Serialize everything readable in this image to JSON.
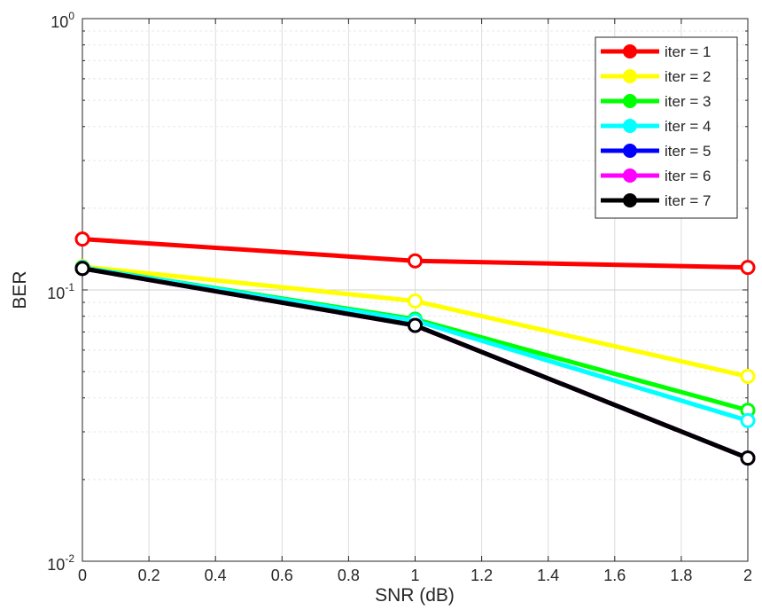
{
  "chart_data": {
    "type": "line",
    "title": "",
    "xlabel": "SNR (dB)",
    "ylabel": "BER",
    "xlim": [
      0,
      2
    ],
    "ylim": [
      0.01,
      1
    ],
    "yscale": "log",
    "grid": true,
    "legend_position": "top-right",
    "x_ticks": [
      "0",
      "0.2",
      "0.4",
      "0.6",
      "0.8",
      "1",
      "1.2",
      "1.4",
      "1.6",
      "1.8",
      "2"
    ],
    "y_ticks": [
      {
        "value": 0.01,
        "base": "10",
        "exp": "-2"
      },
      {
        "value": 0.1,
        "base": "10",
        "exp": "-1"
      },
      {
        "value": 1,
        "base": "10",
        "exp": "0"
      }
    ],
    "x": [
      0,
      1,
      2
    ],
    "series": [
      {
        "name": "iter = 1",
        "color": "#ff0000",
        "values": [
          0.154,
          0.128,
          0.121
        ]
      },
      {
        "name": "iter = 2",
        "color": "#ffff00",
        "values": [
          0.122,
          0.091,
          0.048
        ]
      },
      {
        "name": "iter = 3",
        "color": "#00ff00",
        "values": [
          0.121,
          0.078,
          0.036
        ]
      },
      {
        "name": "iter = 4",
        "color": "#00ffff",
        "values": [
          0.121,
          0.077,
          0.033
        ]
      },
      {
        "name": "iter = 5",
        "color": "#0000ff",
        "values": [
          0.12,
          0.074,
          0.024
        ]
      },
      {
        "name": "iter = 6",
        "color": "#ff00ff",
        "values": [
          0.12,
          0.074,
          0.024
        ]
      },
      {
        "name": "iter = 7",
        "color": "#000000",
        "values": [
          0.12,
          0.074,
          0.024
        ]
      }
    ]
  }
}
